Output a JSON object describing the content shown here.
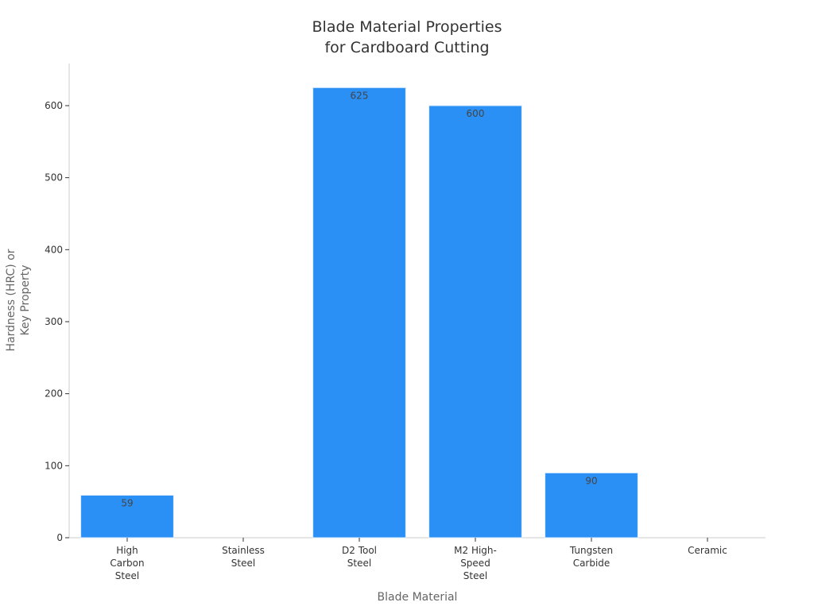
{
  "chart_data": {
    "type": "bar",
    "title_lines": [
      "Blade Material Properties",
      "for Cardboard Cutting"
    ],
    "xlabel": "Blade Material",
    "ylabel_lines": [
      "Hardness (HRC) or",
      "Key Property"
    ],
    "categories": [
      [
        "High",
        "Carbon",
        "Steel"
      ],
      [
        "Stainless",
        "Steel"
      ],
      [
        "D2 Tool",
        "Steel"
      ],
      [
        "M2 High-",
        "Speed",
        "Steel"
      ],
      [
        "Tungsten",
        "Carbide"
      ],
      [
        "Ceramic"
      ]
    ],
    "values": [
      59,
      null,
      625,
      600,
      90,
      null
    ],
    "data_labels": [
      "59",
      "",
      "625",
      "600",
      "90",
      ""
    ],
    "yticks": [
      0,
      100,
      200,
      300,
      400,
      500,
      600
    ],
    "ylim": [
      0,
      660
    ],
    "bar_color": "#2b90f5",
    "grid": false,
    "legend": "none"
  }
}
